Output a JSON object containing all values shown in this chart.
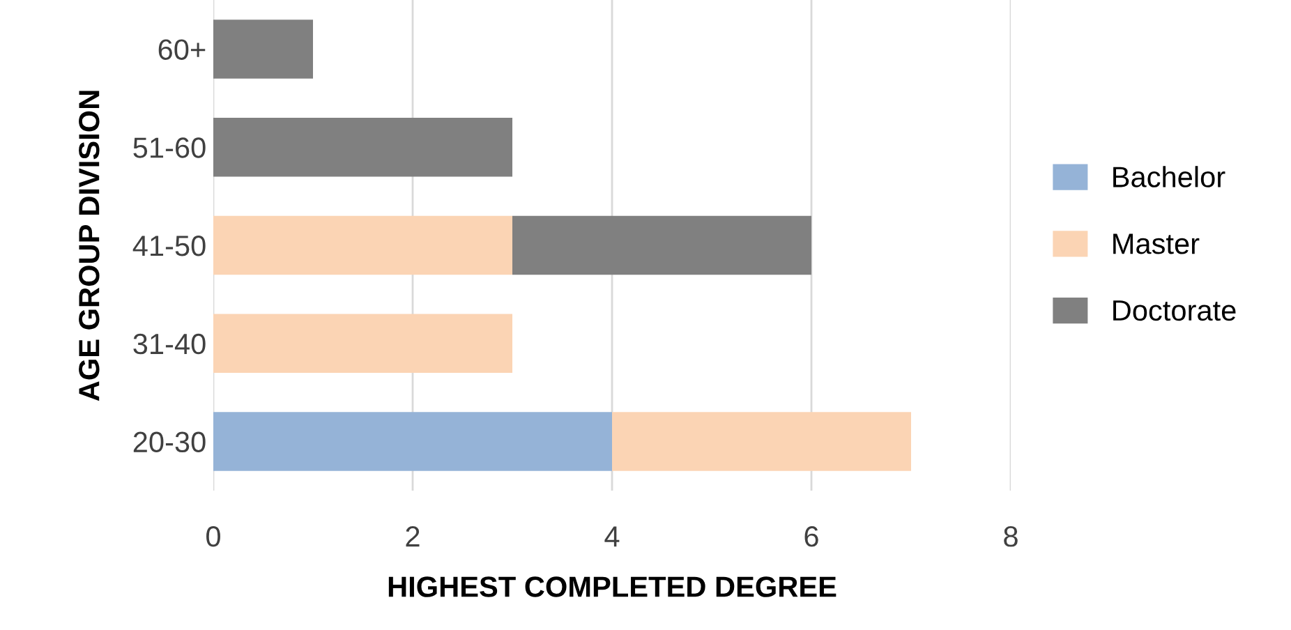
{
  "chart_data": {
    "type": "bar",
    "orientation": "horizontal",
    "stacked": true,
    "categories": [
      "60+",
      "51-60",
      "41-50",
      "31-40",
      "20-30"
    ],
    "series": [
      {
        "name": "Bachelor",
        "color": "#95b3d7",
        "values": [
          null,
          null,
          null,
          null,
          4
        ]
      },
      {
        "name": "Master",
        "color": "#fbd4b4",
        "values": [
          null,
          null,
          3,
          3,
          3
        ]
      },
      {
        "name": "Doctorate",
        "color": "#808080",
        "values": [
          1,
          3,
          3,
          null,
          null
        ]
      }
    ],
    "xlabel": "HIGHEST COMPLETED DEGREE",
    "ylabel": "AGE GROUP DIVISION",
    "xlim": [
      0,
      8
    ],
    "xticks": [
      0,
      2,
      4,
      6,
      8
    ],
    "grid": "x",
    "legend": "right"
  }
}
